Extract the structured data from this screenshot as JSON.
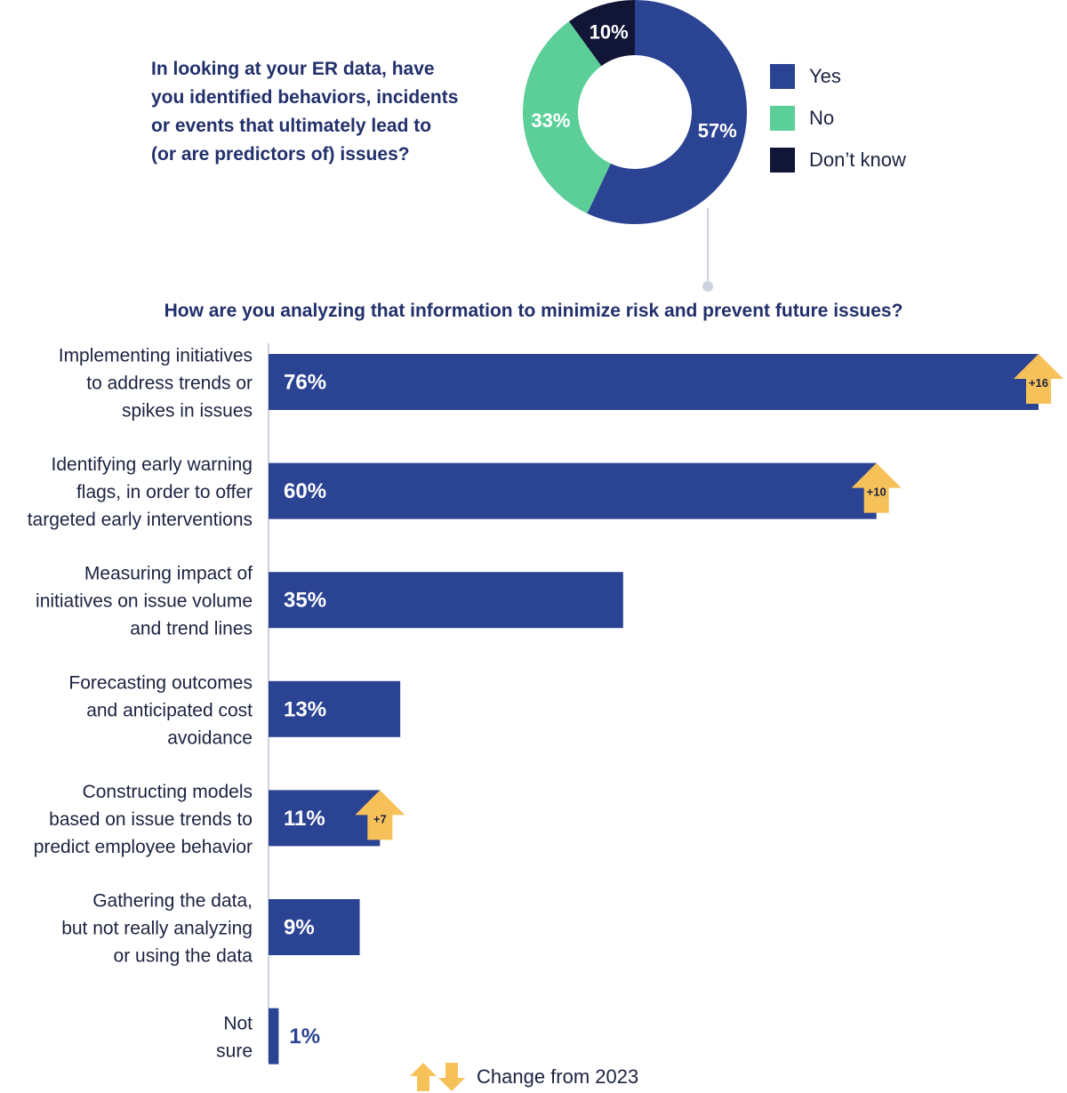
{
  "colors": {
    "yes": "#2b4393",
    "no": "#5ccf98",
    "dont_know": "#111637",
    "bar": "#2b4393",
    "arrow": "#f7c15a",
    "axis": "#cdd3de"
  },
  "donut": {
    "question": "In looking at your ER data, have\nyou identified behaviors, incidents\nor events that ultimately lead to\n(or are predictors of) issues?"
  },
  "bars_section": {
    "question": "How are you analyzing that information to minimize risk and prevent future issues?"
  },
  "footer": {
    "label": "Change from 2023",
    "icons": [
      "up-arrow-icon",
      "down-arrow-icon"
    ]
  },
  "chart_data": [
    {
      "type": "pie",
      "subtype": "donut",
      "categories": [
        "Yes",
        "No",
        "Don’t know"
      ],
      "values": [
        57,
        33,
        10
      ],
      "labels": [
        "57%",
        "33%",
        "10%"
      ],
      "legend": "right"
    },
    {
      "type": "bar",
      "orientation": "horizontal",
      "categories": [
        "Implementing initiatives\nto address trends or\nspikes in issues",
        "Identifying early warning\nflags, in order to offer\ntargeted early interventions",
        "Measuring impact of\ninitiatives on issue volume\nand trend lines",
        "Forecasting outcomes\nand anticipated cost\navoidance",
        "Constructing models\nbased on issue trends to\npredict employee behavior",
        "Gathering the data,\nbut not really analyzing\nor using the data",
        "Not\nsure"
      ],
      "values": [
        76,
        60,
        35,
        13,
        11,
        9,
        1
      ],
      "labels": [
        "76%",
        "60%",
        "35%",
        "13%",
        "11%",
        "9%",
        "1%"
      ],
      "change_from_2023": [
        "+16",
        "+10",
        null,
        null,
        "+7",
        null,
        null
      ],
      "xlim": [
        0,
        76
      ]
    }
  ]
}
